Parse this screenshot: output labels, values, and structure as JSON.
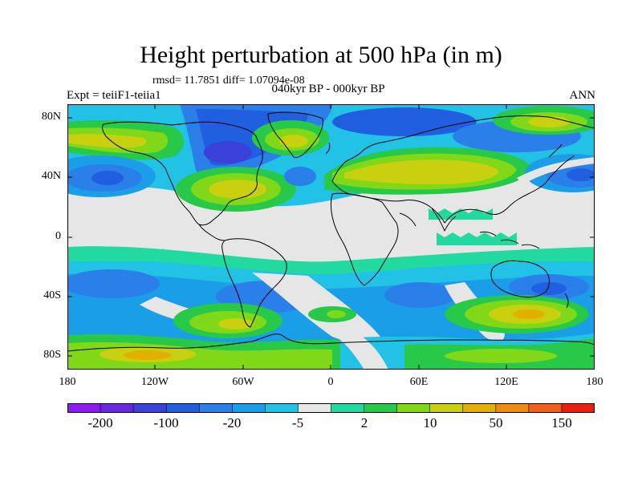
{
  "header": {
    "title": "Height perturbation at 500 hPa (in m)",
    "stats": "rmsd= 11.7851 diff= 1.07094e-08",
    "period": "040kyr BP - 000kyr BP",
    "experiment": "Expt = teiiF1-teiia1",
    "season": "ANN"
  },
  "map": {
    "projection": "cylindrical equidistant",
    "lat_ticks": [
      "80N",
      "40N",
      "0",
      "40S",
      "80S"
    ],
    "lon_ticks": [
      "180",
      "120W",
      "60W",
      "0",
      "60E",
      "120E",
      "180"
    ],
    "features": [
      "filled contours",
      "coastlines"
    ]
  },
  "colorbar": {
    "labels": [
      "-200",
      "-100",
      "-20",
      "-5",
      "2",
      "10",
      "50",
      "150"
    ],
    "colors": [
      "#8c1cf0",
      "#6a26e0",
      "#3a40d8",
      "#1f5fe0",
      "#2a7fe8",
      "#1a9ee8",
      "#22c2e6",
      "#e6e6e6",
      "#22d9a0",
      "#28c848",
      "#80d818",
      "#c8d010",
      "#e2b000",
      "#ee8c10",
      "#f06018",
      "#e82010"
    ]
  },
  "style": {
    "background": "#ffffff",
    "neutral_band": "#e6e6e6"
  }
}
